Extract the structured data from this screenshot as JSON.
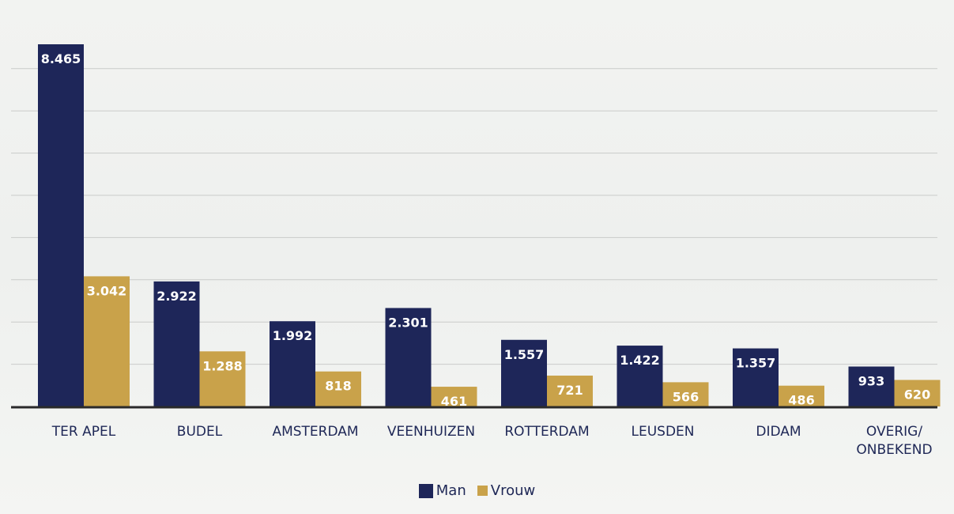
{
  "chart_data": {
    "type": "bar",
    "title": "",
    "xlabel": "",
    "ylabel": "",
    "ylim": [
      0,
      8500
    ],
    "grid": true,
    "legend_position": "bottom-center",
    "categories": [
      "TER APEL",
      "BUDEL",
      "AMSTERDAM",
      "VEENHUIZEN",
      "ROTTERDAM",
      "LEUSDEN",
      "DIDAM",
      "OVERIG/\nONBEKEND"
    ],
    "series": [
      {
        "name": "Man",
        "color": "#1e2659",
        "values": [
          8465,
          2922,
          1992,
          2301,
          1557,
          1422,
          1357,
          933
        ],
        "labels": [
          "8.465",
          "2.922",
          "1.992",
          "2.301",
          "1.557",
          "1.422",
          "1.357",
          "933"
        ]
      },
      {
        "name": "Vrouw",
        "color": "#c9a24a",
        "values": [
          3042,
          1288,
          818,
          461,
          721,
          566,
          486,
          620
        ],
        "labels": [
          "3.042",
          "1.288",
          "818",
          "461",
          "721",
          "566",
          "486",
          "620"
        ]
      }
    ]
  }
}
